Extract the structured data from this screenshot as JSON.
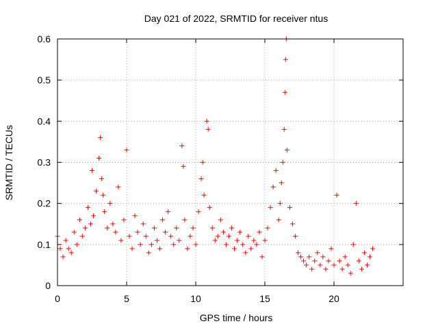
{
  "chart_data": {
    "type": "scatter",
    "title": "Day 021 of 2022, SRMTID for receiver ntus",
    "xlabel": "GPS time / hours",
    "ylabel": "SRMTID / TECUs",
    "xlim": [
      0,
      25
    ],
    "ylim": [
      0,
      0.6
    ],
    "xticks": [
      0,
      5,
      10,
      15,
      20
    ],
    "yticks": [
      0,
      0.1,
      0.2,
      0.3,
      0.4,
      0.5,
      0.6
    ],
    "xtick_labels": [
      "0",
      "5",
      "10",
      "15",
      "20"
    ],
    "ytick_labels": [
      "0",
      "0.1",
      "0.2",
      "0.3",
      "0.4",
      "0.5",
      "0.6"
    ],
    "grid": true,
    "marker": "+",
    "series_color": "#ff0000",
    "series": [
      {
        "name": "SRMTID",
        "x": [
          0.0,
          0.2,
          0.4,
          0.6,
          0.8,
          1.0,
          1.2,
          1.4,
          1.6,
          1.8,
          2.0,
          2.2,
          2.4,
          2.5,
          2.6,
          2.8,
          3.0,
          3.1,
          3.2,
          3.3,
          3.4,
          3.6,
          3.8,
          4.0,
          4.2,
          4.4,
          4.6,
          4.8,
          5.0,
          5.2,
          5.4,
          5.6,
          5.8,
          6.0,
          6.2,
          6.4,
          6.6,
          6.8,
          7.0,
          7.2,
          7.4,
          7.6,
          7.8,
          8.0,
          8.2,
          8.4,
          8.6,
          8.8,
          9.0,
          9.1,
          9.2,
          9.4,
          9.6,
          9.8,
          10.0,
          10.2,
          10.4,
          10.5,
          10.6,
          10.8,
          10.9,
          11.0,
          11.2,
          11.4,
          11.6,
          11.8,
          12.0,
          12.2,
          12.4,
          12.6,
          12.8,
          13.0,
          13.2,
          13.4,
          13.6,
          13.8,
          14.0,
          14.2,
          14.4,
          14.6,
          14.8,
          15.0,
          15.2,
          15.4,
          15.6,
          15.8,
          16.0,
          16.1,
          16.2,
          16.3,
          16.4,
          16.45,
          16.5,
          16.55,
          16.6,
          16.8,
          17.0,
          17.2,
          17.4,
          17.6,
          17.8,
          18.0,
          18.2,
          18.4,
          18.6,
          18.8,
          19.0,
          19.2,
          19.4,
          19.6,
          19.8,
          20.0,
          20.2,
          20.4,
          20.6,
          20.8,
          21.0,
          21.2,
          21.4,
          21.6,
          21.8,
          22.0,
          22.2,
          22.4,
          22.6,
          22.8
        ],
        "y": [
          0.12,
          0.09,
          0.07,
          0.11,
          0.09,
          0.08,
          0.13,
          0.1,
          0.16,
          0.12,
          0.14,
          0.19,
          0.15,
          0.28,
          0.17,
          0.23,
          0.31,
          0.36,
          0.26,
          0.22,
          0.18,
          0.14,
          0.2,
          0.15,
          0.13,
          0.24,
          0.11,
          0.16,
          0.33,
          0.12,
          0.09,
          0.17,
          0.13,
          0.1,
          0.15,
          0.12,
          0.08,
          0.1,
          0.14,
          0.11,
          0.09,
          0.16,
          0.13,
          0.18,
          0.12,
          0.1,
          0.14,
          0.11,
          0.34,
          0.29,
          0.16,
          0.09,
          0.12,
          0.14,
          0.1,
          0.18,
          0.26,
          0.3,
          0.22,
          0.4,
          0.38,
          0.19,
          0.14,
          0.11,
          0.12,
          0.16,
          0.13,
          0.1,
          0.12,
          0.14,
          0.09,
          0.11,
          0.13,
          0.1,
          0.08,
          0.12,
          0.09,
          0.11,
          0.1,
          0.13,
          0.07,
          0.11,
          0.14,
          0.19,
          0.24,
          0.28,
          0.16,
          0.2,
          0.25,
          0.3,
          0.38,
          0.47,
          0.55,
          0.6,
          0.33,
          0.19,
          0.15,
          0.12,
          0.08,
          0.07,
          0.06,
          0.05,
          0.07,
          0.04,
          0.06,
          0.08,
          0.05,
          0.07,
          0.04,
          0.06,
          0.09,
          0.05,
          0.22,
          0.06,
          0.04,
          0.07,
          0.05,
          0.03,
          0.1,
          0.2,
          0.06,
          0.04,
          0.08,
          0.05,
          0.07,
          0.09
        ]
      }
    ]
  }
}
